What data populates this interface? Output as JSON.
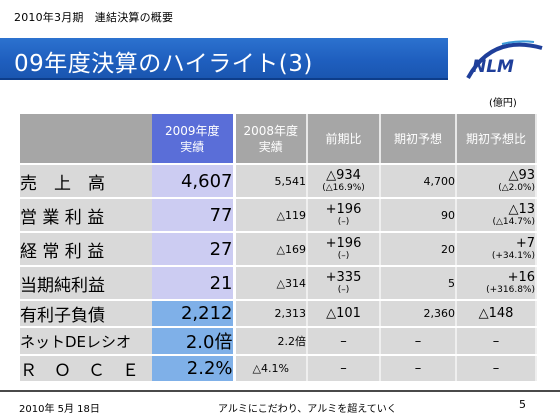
{
  "header": {
    "top_label": "2010年3月期　連結決算の概要",
    "title": "09年度決算のハイライト(3)",
    "unit": "(億円)"
  },
  "logo": {
    "text": "NLM",
    "color": "#1f3f9a"
  },
  "table": {
    "headers": {
      "cur": [
        "2009年度",
        "実績"
      ],
      "prev": [
        "2008年度",
        "実績"
      ],
      "yoy": "前期比",
      "forecast": "期初予想",
      "vs_forecast": "期初予想比"
    },
    "rows": [
      {
        "label": "売　上　高",
        "cur": "4,607",
        "prev": "5,541",
        "yoy": "△934",
        "yoy_sub": "(△16.9%)",
        "forecast": "4,700",
        "vs": "△93",
        "vs_sub": "(△2.0%)"
      },
      {
        "label": "営 業 利 益",
        "cur": "77",
        "prev": "△119",
        "yoy": "+196",
        "yoy_sub": "(–)",
        "forecast": "90",
        "vs": "△13",
        "vs_sub": "(△14.7%)"
      },
      {
        "label": "経 常 利 益",
        "cur": "27",
        "prev": "△169",
        "yoy": "+196",
        "yoy_sub": "(–)",
        "forecast": "20",
        "vs": "+7",
        "vs_sub": "(+34.1%)"
      },
      {
        "label": "当期純利益",
        "cur": "21",
        "prev": "△314",
        "yoy": "+335",
        "yoy_sub": "(–)",
        "forecast": "5",
        "vs": "+16",
        "vs_sub": "(+316.8%)"
      },
      {
        "label": "有利子負債",
        "cur": "2,212",
        "prev": "2,313",
        "yoy": "△101",
        "forecast": "2,360",
        "vs": "△148"
      },
      {
        "label": "ネットDEレシオ",
        "cur": "2.0倍",
        "prev": "2.2倍",
        "yoy": "–",
        "forecast": "–",
        "vs": "–"
      },
      {
        "label": "Ｒ　Ｏ　Ｃ　Ｅ",
        "cur": "2.2%",
        "prev": "△4.1%",
        "yoy": "–",
        "forecast": "–",
        "vs": "–"
      }
    ]
  },
  "footer": {
    "date": "2010年 5月 18日",
    "slogan": "アルミにこだわり、アルミを超えていく",
    "page": "5"
  },
  "colors": {
    "title_bar": "#1f5fbf",
    "cur_header": "#5a6ed8",
    "cur_light": "#ccccf2",
    "cur_mid": "#9b9de6",
    "cur_blue": "#7fb0e8",
    "grey": "#d9d9d9",
    "header_grey": "#a6a6a6"
  }
}
